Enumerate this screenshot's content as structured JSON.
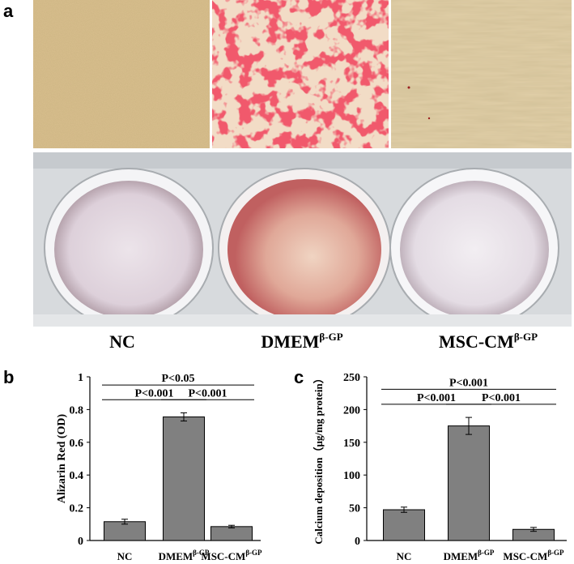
{
  "panels": {
    "a": "a",
    "b": "b",
    "c": "c"
  },
  "group_labels": [
    {
      "base": "NC",
      "sup": ""
    },
    {
      "base": "DMEM",
      "sup": "β-GP"
    },
    {
      "base": "MSC-CM",
      "sup": "β-GP"
    }
  ],
  "colors": {
    "bar": "#808080",
    "alizarin_red": "#e0202a",
    "dish_pink": "#d8a0a0",
    "dish_pale": "#e6dde4"
  },
  "chart_data": [
    {
      "type": "bar",
      "panel": "b",
      "categories": [
        {
          "base": "NC",
          "sup": ""
        },
        {
          "base": "DMEM",
          "sup": "β-GP"
        },
        {
          "base": "MSC-CM",
          "sup": "β-GP"
        }
      ],
      "values": [
        0.115,
        0.755,
        0.085
      ],
      "errors": [
        0.015,
        0.025,
        0.008
      ],
      "ylabel": "Alizarin Red (OD)",
      "ylim": [
        0,
        1
      ],
      "yticks": [
        0,
        0.2,
        0.4,
        0.6,
        0.8,
        1
      ],
      "ytick_labels": [
        "0",
        "0.2",
        "0.4",
        "0.6",
        "0.8",
        "1"
      ],
      "comparisons": [
        {
          "from": 0,
          "to": 1,
          "label": "P<0.001",
          "y": 0.86
        },
        {
          "from": 1,
          "to": 2,
          "label": "P<0.001",
          "y": 0.86
        },
        {
          "from": 0,
          "to": 2,
          "label": "P<0.05",
          "y": 0.95
        }
      ]
    },
    {
      "type": "bar",
      "panel": "c",
      "categories": [
        {
          "base": "NC",
          "sup": ""
        },
        {
          "base": "DMEM",
          "sup": "β-GP"
        },
        {
          "base": "MSC-CM",
          "sup": "β-GP"
        }
      ],
      "values": [
        47,
        175,
        17
      ],
      "errors": [
        4,
        13,
        3
      ],
      "ylabel": "Calcium deposition（μg/mg protein）",
      "ylim": [
        0,
        250
      ],
      "yticks": [
        0,
        50,
        100,
        150,
        200,
        250
      ],
      "ytick_labels": [
        "0",
        "50",
        "100",
        "150",
        "200",
        "250"
      ],
      "comparisons": [
        {
          "from": 0,
          "to": 1,
          "label": "P<0.001",
          "y": 208
        },
        {
          "from": 1,
          "to": 2,
          "label": "P<0.001",
          "y": 208
        },
        {
          "from": 0,
          "to": 2,
          "label": "P<0.001",
          "y": 231
        }
      ]
    }
  ]
}
